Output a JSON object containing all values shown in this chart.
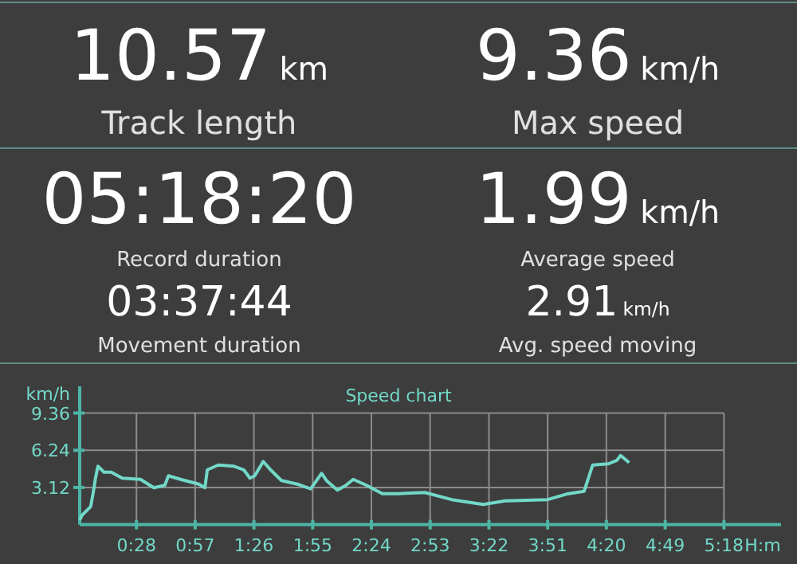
{
  "chart_data": [
    {
      "type": "other",
      "annotations": [
        "10.57",
        "km",
        "Track length",
        "9.36",
        "km/h",
        "Max speed",
        "05:18:20",
        "Record duration",
        "1.99",
        "km/h",
        "Average speed",
        "03:37:44",
        "Movement duration",
        "2.91",
        "km/h",
        "Avg. speed moving"
      ]
    },
    {
      "type": "line",
      "title": "Speed chart",
      "xlabel": "H:m",
      "ylabel": "km/h",
      "grid": true,
      "marker": "none",
      "line_style": "solid",
      "xlim": [
        0,
        5.77
      ],
      "ylim": [
        0,
        11.6
      ],
      "xticks": [
        {
          "value": 0.467,
          "label": "0:28"
        },
        {
          "value": 0.95,
          "label": "0:57"
        },
        {
          "value": 1.433,
          "label": "1:26"
        },
        {
          "value": 1.917,
          "label": "1:55"
        },
        {
          "value": 2.4,
          "label": "2:24"
        },
        {
          "value": 2.883,
          "label": "2:53"
        },
        {
          "value": 3.367,
          "label": "3:22"
        },
        {
          "value": 3.85,
          "label": "3:51"
        },
        {
          "value": 4.333,
          "label": "4:20"
        },
        {
          "value": 4.817,
          "label": "4:49"
        },
        {
          "value": 5.3,
          "label": "5:18"
        }
      ],
      "yticks": [
        3.12,
        6.24,
        9.36
      ],
      "series": [
        {
          "color": "#72d8c8",
          "x": [
            0,
            0.02,
            0.09,
            0.11,
            0.13,
            0.15,
            0.2,
            0.26,
            0.35,
            0.5,
            0.61,
            0.7,
            0.73,
            0.83,
            0.98,
            1.03,
            1.05,
            1.14,
            1.27,
            1.35,
            1.4,
            1.44,
            1.51,
            1.57,
            1.66,
            1.79,
            1.9,
            1.99,
            2.03,
            2.12,
            2.19,
            2.25,
            2.36,
            2.49,
            2.62,
            2.84,
            3.06,
            3.32,
            3.5,
            3.85,
            4.02,
            4.15,
            4.22,
            4.35,
            4.42,
            4.45,
            4.52
          ],
          "values": [
            0.4,
            0.8,
            1.5,
            2.6,
            3.9,
            4.9,
            4.4,
            4.4,
            3.9,
            3.8,
            3.1,
            3.3,
            4.1,
            3.8,
            3.4,
            3.1,
            4.6,
            5.0,
            4.9,
            4.6,
            3.9,
            4.1,
            5.3,
            4.6,
            3.7,
            3.4,
            3.0,
            4.3,
            3.7,
            2.9,
            3.3,
            3.8,
            3.3,
            2.6,
            2.6,
            2.7,
            2.1,
            1.7,
            2.0,
            2.1,
            2.6,
            2.8,
            5.0,
            5.1,
            5.4,
            5.8,
            5.2
          ]
        }
      ]
    }
  ]
}
